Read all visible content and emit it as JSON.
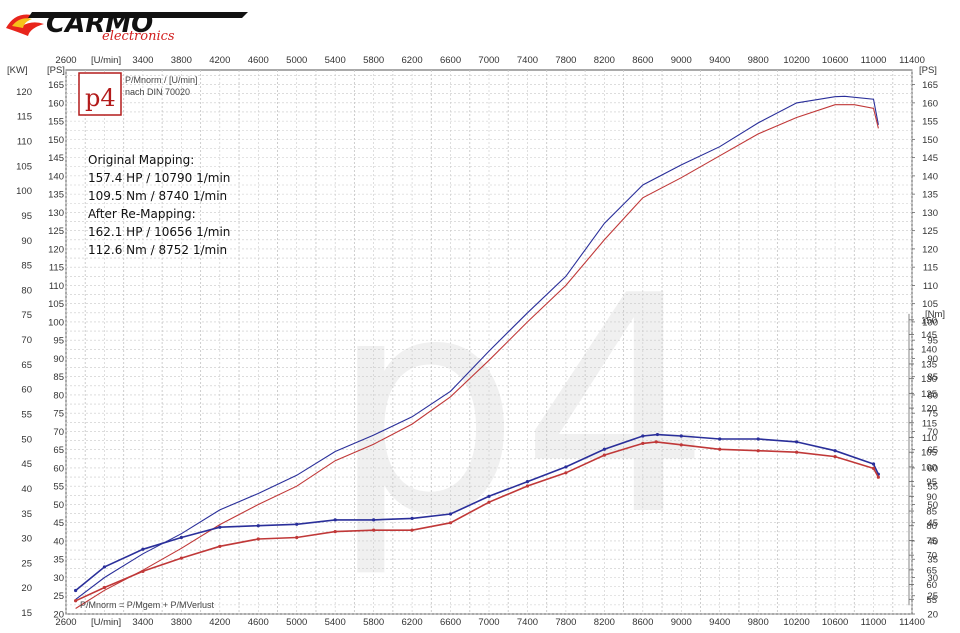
{
  "brand": {
    "name": "CARMO",
    "sub": "electronics"
  },
  "p4": {
    "badge": "p4",
    "title": "P/Mnorm / [U/min]",
    "standard": "nach DIN 70020",
    "footer": "P/Mnorm = P/Mgem + P/MVerlust"
  },
  "axes": {
    "x_unit": "[U/min]",
    "kw_unit": "[KW]",
    "ps_unit_left": "[PS]",
    "ps_unit_right": "[PS]",
    "nm_unit": "[Nm]"
  },
  "annotation": [
    "Original Mapping:",
    "157.4 HP / 10790 1/min",
    "109.5 Nm / 8740 1/min",
    "After Re-Mapping:",
    "162.1 HP / 10656 1/min",
    "112.6 Nm / 8752 1/min"
  ],
  "chart_data": {
    "type": "line",
    "x_ticks": [
      2600,
      3000,
      3400,
      3800,
      4200,
      4600,
      5000,
      5400,
      5800,
      6200,
      6600,
      7000,
      7400,
      7800,
      8200,
      8600,
      9000,
      9400,
      9800,
      10200,
      10600,
      11000,
      11400
    ],
    "kw_ticks": [
      15,
      20,
      25,
      30,
      35,
      40,
      45,
      50,
      55,
      60,
      65,
      70,
      75,
      80,
      85,
      90,
      95,
      100,
      105,
      110,
      115,
      120
    ],
    "ps_ticks": [
      20,
      25,
      30,
      35,
      40,
      45,
      50,
      55,
      60,
      65,
      70,
      75,
      80,
      85,
      90,
      95,
      100,
      105,
      110,
      115,
      120,
      125,
      130,
      135,
      140,
      145,
      150,
      155,
      160,
      165
    ],
    "nm_ticks": [
      55,
      60,
      65,
      70,
      75,
      80,
      85,
      90,
      95,
      100,
      105,
      110,
      115,
      120,
      125,
      130,
      135,
      140,
      145,
      150
    ],
    "xlim": [
      2600,
      11400
    ],
    "ps_lim": [
      20,
      169
    ],
    "grid": true,
    "colors": {
      "original": "#c03838",
      "remap": "#2a2f9a",
      "grid": "#c8c8c8",
      "watermark": "#efefef"
    },
    "series": [
      {
        "key": "remap_power",
        "unit": "PS",
        "x": [
          2700,
          3000,
          3400,
          3800,
          4200,
          4600,
          5000,
          5400,
          5800,
          6200,
          6600,
          7000,
          7400,
          7800,
          8200,
          8600,
          9000,
          9400,
          9800,
          10200,
          10600,
          10700,
          11000,
          11050
        ],
        "y": [
          24,
          30,
          36.5,
          42,
          48.5,
          53,
          58,
          64.5,
          69,
          74,
          81,
          92,
          102.5,
          112.5,
          127,
          137.5,
          143,
          148,
          154.5,
          160,
          161.7,
          161.8,
          161,
          154
        ]
      },
      {
        "key": "original_power",
        "unit": "PS",
        "x": [
          2700,
          3000,
          3400,
          3800,
          4200,
          4600,
          5000,
          5400,
          5800,
          6200,
          6600,
          7000,
          7400,
          7800,
          8200,
          8600,
          9000,
          9400,
          9800,
          10200,
          10600,
          10800,
          11000,
          11050
        ],
        "y": [
          21.5,
          26.5,
          32,
          38,
          44.5,
          50,
          55,
          62,
          66.5,
          72,
          79.5,
          89.5,
          100,
          110,
          122.5,
          134,
          139.5,
          145.5,
          151.5,
          156,
          159.5,
          159.5,
          158.5,
          153
        ]
      },
      {
        "key": "remap_torque",
        "unit": "Nm",
        "x": [
          2700,
          3000,
          3400,
          3800,
          4200,
          4600,
          5000,
          5400,
          5800,
          6200,
          6600,
          7000,
          7400,
          7800,
          8200,
          8600,
          8752,
          9000,
          9400,
          9800,
          10200,
          10600,
          11000,
          11050
        ],
        "y": [
          58,
          66,
          72,
          76,
          79.5,
          80,
          80.5,
          82,
          82,
          82.5,
          84,
          90,
          95,
          100,
          106,
          110.5,
          111,
          110.5,
          109.5,
          109.5,
          108.5,
          105.5,
          101,
          97.5
        ]
      },
      {
        "key": "original_torque",
        "unit": "Nm",
        "x": [
          2700,
          3000,
          3400,
          3800,
          4200,
          4600,
          5000,
          5400,
          5800,
          6200,
          6600,
          7000,
          7400,
          7800,
          8200,
          8600,
          8740,
          9000,
          9400,
          9800,
          10200,
          10600,
          11000,
          11050
        ],
        "y": [
          54.5,
          59,
          64.5,
          69,
          73,
          75.5,
          76,
          78,
          78.5,
          78.5,
          81,
          88,
          93.5,
          98,
          104,
          108,
          108.5,
          107.5,
          106,
          105.5,
          105,
          103.5,
          99.5,
          96.5
        ]
      }
    ]
  }
}
